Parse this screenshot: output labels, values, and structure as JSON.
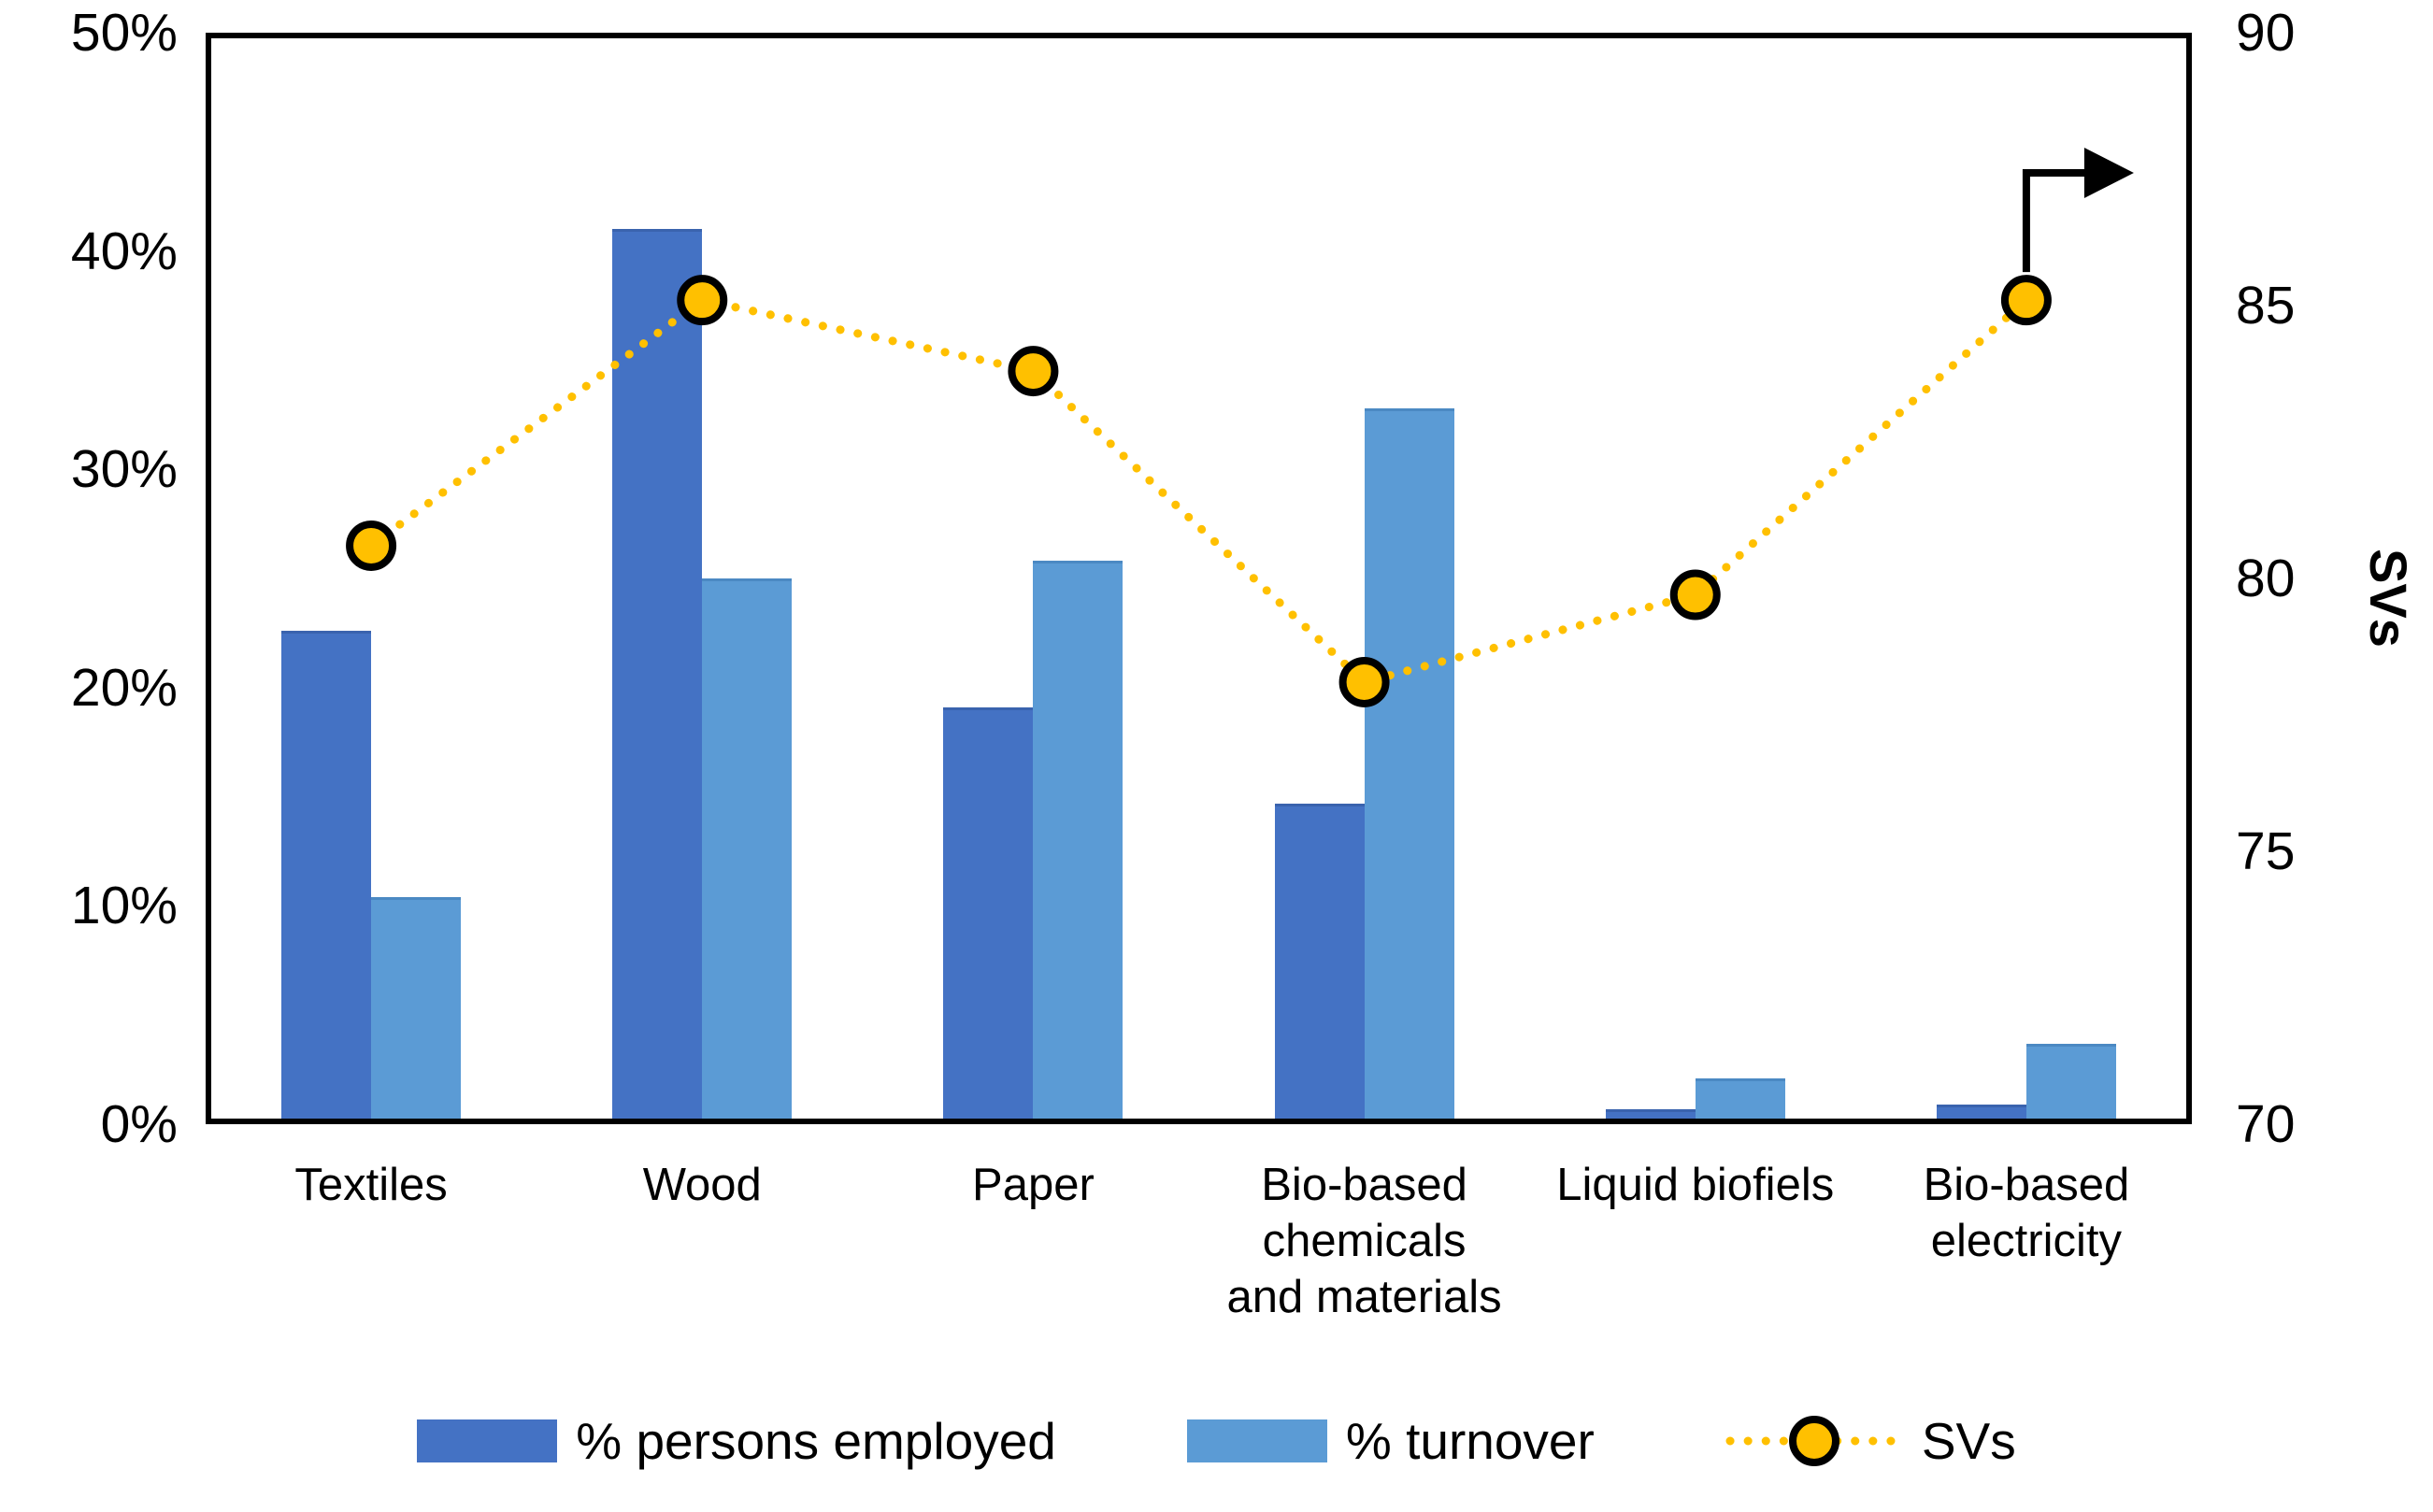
{
  "chart_data": {
    "type": "combo-bar-line",
    "title": "",
    "categories": [
      "Textiles",
      "Wood",
      "Paper",
      "Bio-based\nchemicals\nand materials",
      "Liquid biofiels",
      "Bio-based\nelectricity"
    ],
    "series": [
      {
        "name": "% persons employed",
        "type": "bar",
        "axis": "left",
        "color": "#4472C4",
        "edge_color": "#3a63ae",
        "values": [
          22.6,
          41.0,
          19.1,
          14.7,
          0.7,
          0.9
        ]
      },
      {
        "name": "% turnover",
        "type": "bar",
        "axis": "left",
        "color": "#5B9BD5",
        "edge_color": "#4b89c3",
        "values": [
          10.4,
          25.0,
          25.8,
          32.8,
          2.1,
          3.7
        ]
      },
      {
        "name": "SVs",
        "type": "line",
        "axis": "right",
        "color": "#FFC000",
        "marker_fill": "#FFC000",
        "marker_stroke": "#000000",
        "line_style": "dotted",
        "values": [
          80.6,
          85.1,
          83.8,
          78.1,
          79.7,
          85.1
        ]
      }
    ],
    "axes": {
      "left": {
        "min": 0,
        "max": 50,
        "step": 10,
        "tick_labels": [
          "0%",
          "10%",
          "20%",
          "30%",
          "40%",
          "50%"
        ],
        "title": ""
      },
      "right": {
        "min": 70,
        "max": 90,
        "step": 5,
        "tick_labels": [
          "70",
          "75",
          "80",
          "85",
          "90"
        ],
        "title": "SVs"
      }
    },
    "grid": false,
    "legend_position": "bottom",
    "annotations": [
      {
        "type": "bent-arrow",
        "description": "arrow from last SVs marker pointing up then right toward the right axis",
        "color": "#000000"
      }
    ],
    "frame_color": "#000000",
    "background_color": "#ffffff"
  }
}
